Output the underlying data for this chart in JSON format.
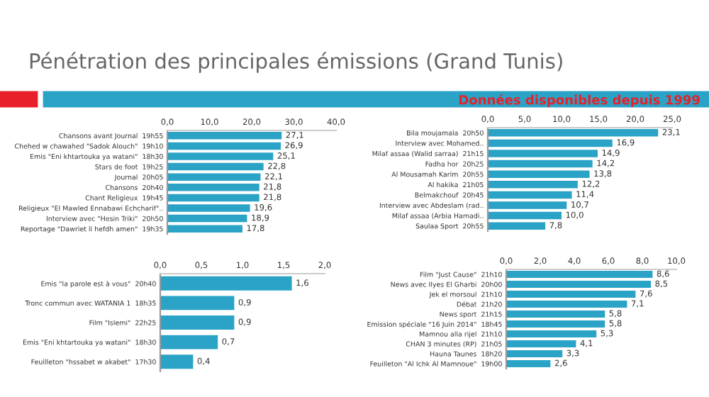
{
  "chart_data": [
    {
      "type": "bar",
      "orientation": "horizontal",
      "title": "Pénétration des principales émissions (Grand Tunis)",
      "annotations": [
        "Données disponibles depuis 1999"
      ],
      "categories": [
        "Chansons avant Journal  19h55",
        "Chehed w chawahed \"Sadok Alouch\"  19h10",
        "Emis \"Eni khtartouka ya watani\"  18h30",
        "Stars de foot  19h25",
        "Journal  20h05",
        "Chansons  20h40",
        "Chant Religieux  19h45",
        "Religieux \"El Mawled Ennabawi Echcharif\"..",
        "Interview avec \"Hesin Triki\"  20h50",
        "Reportage \"Dawriet li hefdh amen\"  19h35"
      ],
      "values": [
        27.1,
        26.9,
        25.1,
        22.8,
        22.1,
        21.8,
        21.8,
        19.6,
        18.9,
        17.8
      ],
      "value_labels": [
        "27,1",
        "26,9",
        "25,1",
        "22,8",
        "22,1",
        "21,8",
        "21,8",
        "19,6",
        "18,9",
        "17,8"
      ],
      "color": "#2aa3c6",
      "xlim": [
        0,
        40
      ],
      "xticks": [
        {
          "value": 0,
          "label": "0,0"
        },
        {
          "value": 10,
          "label": "10,0"
        },
        {
          "value": 20,
          "label": "20,0"
        },
        {
          "value": 30,
          "label": "30,0"
        },
        {
          "value": 40,
          "label": "40,0"
        }
      ],
      "grid": false,
      "legend": false
    },
    {
      "type": "bar",
      "orientation": "horizontal",
      "categories": [
        "Bila moujamala  20h50",
        "Interview avec Mohamed..",
        "Milaf assaa (Walid sarraa)  21h15",
        "Fadha hor  20h25",
        "Al Mousamah Karim  20h55",
        "Al hakika  21h05",
        "Belmakchouf  20h45",
        "Interview avec Abdeslam (rad..",
        "Milaf assaa (Arbia Hamadi..",
        "Saulaa Sport  20h55"
      ],
      "values": [
        23.1,
        16.9,
        14.9,
        14.2,
        13.8,
        12.2,
        11.4,
        10.7,
        10.0,
        7.8
      ],
      "value_labels": [
        "23,1",
        "16,9",
        "14,9",
        "14,2",
        "13,8",
        "12,2",
        "11,4",
        "10,7",
        "10,0",
        "7,8"
      ],
      "color": "#2aa3c6",
      "xlim": [
        0,
        25
      ],
      "xticks": [
        {
          "value": 0,
          "label": "0,0"
        },
        {
          "value": 5,
          "label": "5,0"
        },
        {
          "value": 10,
          "label": "10,0"
        },
        {
          "value": 15,
          "label": "15,0"
        },
        {
          "value": 20,
          "label": "20,0"
        },
        {
          "value": 25,
          "label": "25,0"
        }
      ],
      "grid": false,
      "legend": false
    },
    {
      "type": "bar",
      "orientation": "horizontal",
      "categories": [
        "Emis \"la parole est à vous\"  20h40",
        "Tronc commun avec WATANIA 1  18h35",
        "Film \"Islemi\"  22h25",
        "Emis \"Eni khtartouka ya watani\"  18h30",
        "Feuilleton \"hssabet w akabet\"  17h30"
      ],
      "values": [
        1.6,
        0.9,
        0.9,
        0.7,
        0.4
      ],
      "value_labels": [
        "1,6",
        "0,9",
        "0,9",
        "0,7",
        "0,4"
      ],
      "color": "#2aa3c6",
      "xlim": [
        0,
        2
      ],
      "xticks": [
        {
          "value": 0,
          "label": "0,0"
        },
        {
          "value": 0.5,
          "label": "0,5"
        },
        {
          "value": 1,
          "label": "1,0"
        },
        {
          "value": 1.5,
          "label": "1,5"
        },
        {
          "value": 2,
          "label": "2,0"
        }
      ],
      "grid": false,
      "legend": false
    },
    {
      "type": "bar",
      "orientation": "horizontal",
      "categories": [
        "Film \"Just Cause\"  21h10",
        "News avec Ilyes El Gharbi  20h00",
        "Jek el morsoul  21h10",
        "Débat  21h20",
        "News sport  21h15",
        "Emission spéciale \"16 Juin 2014\"  18h45",
        "Mamnou alla rijel  21h10",
        "CHAN 3 minutes (RP)  21h05",
        "Hauna Taunes  18h20",
        "Feuilleton \"Al Ichk Al Mamnoue\"  19h00"
      ],
      "values": [
        8.6,
        8.5,
        7.6,
        7.1,
        5.8,
        5.8,
        5.3,
        4.1,
        3.3,
        2.6
      ],
      "value_labels": [
        "8,6",
        "8,5",
        "7,6",
        "7,1",
        "5,8",
        "5,8",
        "5,3",
        "4,1",
        "3,3",
        "2,6"
      ],
      "color": "#2aa3c6",
      "xlim": [
        0,
        10
      ],
      "xticks": [
        {
          "value": 0,
          "label": "0,0"
        },
        {
          "value": 2,
          "label": "2,0"
        },
        {
          "value": 4,
          "label": "4,0"
        },
        {
          "value": 6,
          "label": "6,0"
        },
        {
          "value": 8,
          "label": "8,0"
        },
        {
          "value": 10,
          "label": "10,0"
        }
      ],
      "grid": false,
      "legend": false
    }
  ]
}
